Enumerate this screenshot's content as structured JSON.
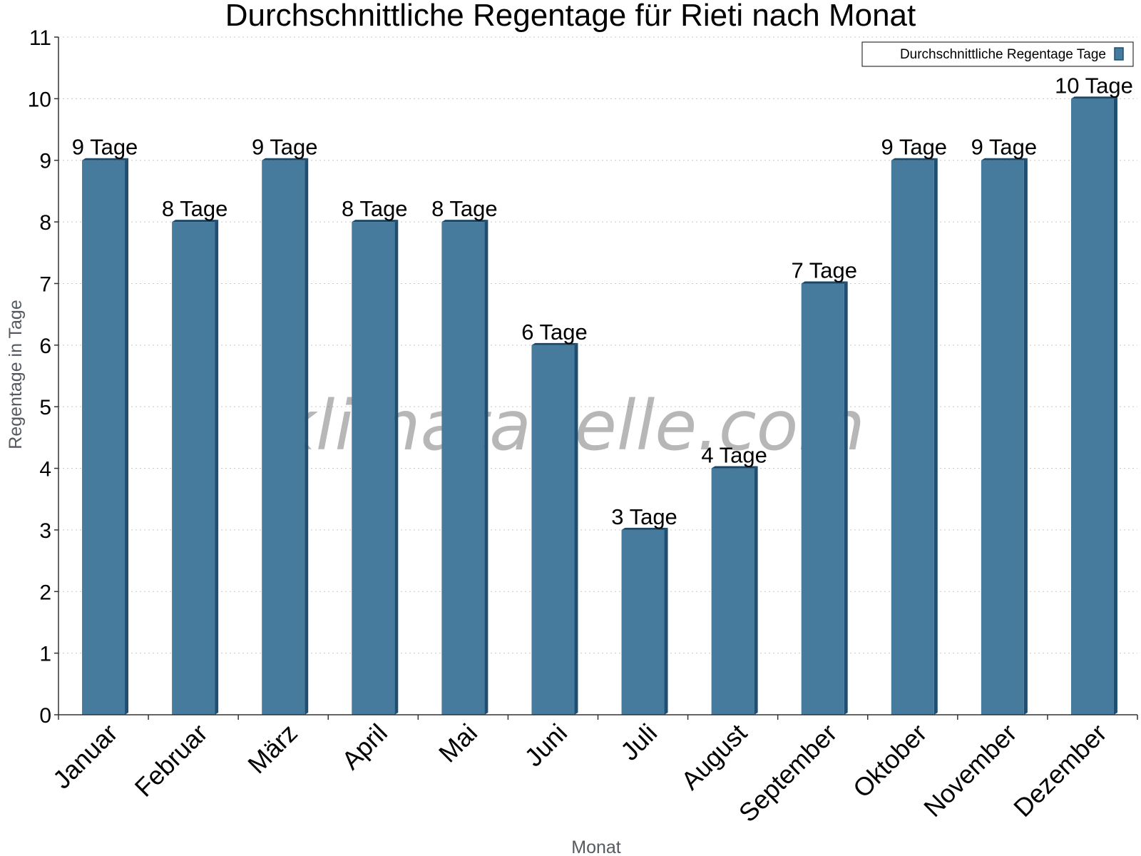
{
  "chart_data": {
    "type": "bar",
    "title": "Durchschnittliche Regentage für Rieti nach Monat",
    "xlabel": "Monat",
    "ylabel": "Regentage in Tage",
    "categories": [
      "Januar",
      "Februar",
      "März",
      "April",
      "Mai",
      "Juni",
      "Juli",
      "August",
      "September",
      "Oktober",
      "November",
      "Dezember"
    ],
    "series": [
      {
        "name": "Durchschnittliche Regentage Tage",
        "values": [
          9,
          8,
          9,
          8,
          8,
          6,
          3,
          4,
          7,
          9,
          9,
          10
        ],
        "labels": [
          "9 Tage",
          "8 Tage",
          "9 Tage",
          "8 Tage",
          "8 Tage",
          "6 Tage",
          "3 Tage",
          "4 Tage",
          "7 Tage",
          "9 Tage",
          "9 Tage",
          "10 Tage"
        ]
      }
    ],
    "ylim": [
      0,
      11
    ],
    "yticks": [
      0,
      1,
      2,
      3,
      4,
      5,
      6,
      7,
      8,
      9,
      10,
      11
    ],
    "grid": true,
    "legend_position": "top-right",
    "colors": {
      "bar": "#467b9d",
      "bar_side": "#1f4e70",
      "bar_top": "#1a4766"
    }
  },
  "watermark": "klimatabelle.com"
}
